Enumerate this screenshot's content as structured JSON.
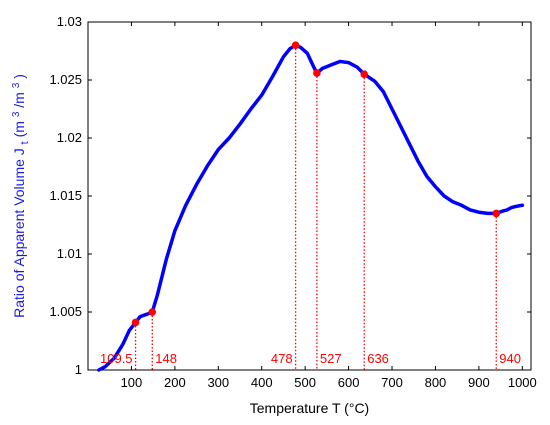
{
  "chart_data": {
    "type": "line",
    "title": "",
    "xlabel": "Temperature T (°C)",
    "ylabel": {
      "main": "Ratio of Apparent Volume J",
      "subscript": "t",
      "unit_open": " (m",
      "unit_sup1": "3",
      "unit_mid": "/m",
      "unit_sup2": "3",
      "unit_close": ")"
    },
    "xlim": [
      0,
      1020
    ],
    "ylim": [
      1.0,
      1.03
    ],
    "xticks": [
      100,
      200,
      300,
      400,
      500,
      600,
      700,
      800,
      900,
      1000
    ],
    "yticks": [
      1,
      1.005,
      1.01,
      1.015,
      1.02,
      1.025,
      1.03
    ],
    "grid": false,
    "legend": "none",
    "line_color": "#0000ff",
    "marker_color": "#ff0000",
    "series": [
      {
        "x": [
          25,
          40,
          60,
          80,
          95,
          109.5,
          120,
          135,
          148,
          160,
          180,
          200,
          225,
          250,
          275,
          300,
          325,
          350,
          375,
          400,
          425,
          450,
          465,
          478,
          490,
          505,
          520,
          527,
          540,
          560,
          580,
          600,
          620,
          636,
          660,
          680,
          700,
          720,
          740,
          760,
          780,
          800,
          820,
          840,
          860,
          880,
          900,
          920,
          940,
          955,
          965,
          975,
          985,
          1000
        ],
        "y": [
          1.0,
          1.0003,
          1.001,
          1.0022,
          1.0034,
          1.0041,
          1.0046,
          1.0048,
          1.005,
          1.0065,
          1.0095,
          1.012,
          1.0142,
          1.016,
          1.0176,
          1.019,
          1.02,
          1.0212,
          1.0225,
          1.0237,
          1.0253,
          1.027,
          1.0277,
          1.028,
          1.0278,
          1.0273,
          1.0261,
          1.0256,
          1.026,
          1.0263,
          1.0266,
          1.0265,
          1.0261,
          1.0255,
          1.0249,
          1.024,
          1.0225,
          1.021,
          1.0195,
          1.018,
          1.0167,
          1.0158,
          1.015,
          1.0145,
          1.0142,
          1.0138,
          1.0136,
          1.0135,
          1.0135,
          1.0137,
          1.0138,
          1.014,
          1.0141,
          1.0142
        ]
      }
    ],
    "markers": [
      {
        "label": "109.5",
        "x": 109.5,
        "y": 1.0041
      },
      {
        "label": "148",
        "x": 148,
        "y": 1.005
      },
      {
        "label": "478",
        "x": 478,
        "y": 1.028
      },
      {
        "label": "527",
        "x": 527,
        "y": 1.0256
      },
      {
        "label": "636",
        "x": 636,
        "y": 1.0255
      },
      {
        "label": "940",
        "x": 940,
        "y": 1.0135
      }
    ]
  }
}
